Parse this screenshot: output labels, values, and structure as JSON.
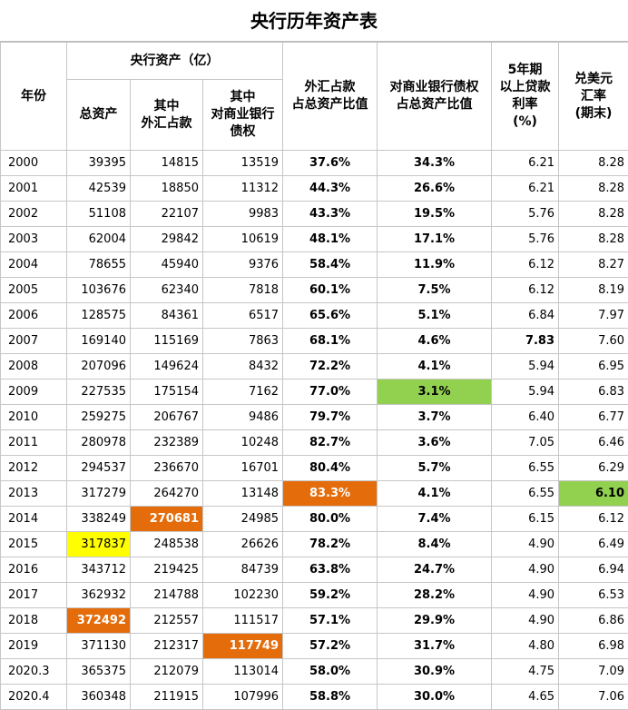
{
  "title": "央行历年资产表",
  "table": {
    "header_group": "央行资产（亿）",
    "headers": [
      "年份",
      "总资产",
      "其中\n外汇占款",
      "其中\n对商业银行\n债权",
      "外汇占款\n占总资产比值",
      "对商业银行债权\n占总资产比值",
      "5年期\n以上贷款\n利率\n(%)",
      "兑美元\n汇率\n(期末)"
    ],
    "rows": [
      [
        "2000",
        "39395",
        "14815",
        "13519",
        "37.6%",
        "34.3%",
        "6.21",
        "8.28"
      ],
      [
        "2001",
        "42539",
        "18850",
        "11312",
        "44.3%",
        "26.6%",
        "6.21",
        "8.28"
      ],
      [
        "2002",
        "51108",
        "22107",
        "9983",
        "43.3%",
        "19.5%",
        "5.76",
        "8.28"
      ],
      [
        "2003",
        "62004",
        "29842",
        "10619",
        "48.1%",
        "17.1%",
        "5.76",
        "8.28"
      ],
      [
        "2004",
        "78655",
        "45940",
        "9376",
        "58.4%",
        "11.9%",
        "6.12",
        "8.27"
      ],
      [
        "2005",
        "103676",
        "62340",
        "7818",
        "60.1%",
        "7.5%",
        "6.12",
        "8.19"
      ],
      [
        "2006",
        "128575",
        "84361",
        "6517",
        "65.6%",
        "5.1%",
        "6.84",
        "7.97"
      ],
      [
        "2007",
        "169140",
        "115169",
        "7863",
        "68.1%",
        "4.6%",
        "7.83",
        "7.60"
      ],
      [
        "2008",
        "207096",
        "149624",
        "8432",
        "72.2%",
        "4.1%",
        "5.94",
        "6.95"
      ],
      [
        "2009",
        "227535",
        "175154",
        "7162",
        "77.0%",
        "3.1%",
        "5.94",
        "6.83"
      ],
      [
        "2010",
        "259275",
        "206767",
        "9486",
        "79.7%",
        "3.7%",
        "6.40",
        "6.77"
      ],
      [
        "2011",
        "280978",
        "232389",
        "10248",
        "82.7%",
        "3.6%",
        "7.05",
        "6.46"
      ],
      [
        "2012",
        "294537",
        "236670",
        "16701",
        "80.4%",
        "5.7%",
        "6.55",
        "6.29"
      ],
      [
        "2013",
        "317279",
        "264270",
        "13148",
        "83.3%",
        "4.1%",
        "6.55",
        "6.10"
      ],
      [
        "2014",
        "338249",
        "270681",
        "24985",
        "80.0%",
        "7.4%",
        "6.15",
        "6.12"
      ],
      [
        "2015",
        "317837",
        "248538",
        "26626",
        "78.2%",
        "8.4%",
        "4.90",
        "6.49"
      ],
      [
        "2016",
        "343712",
        "219425",
        "84739",
        "63.8%",
        "24.7%",
        "4.90",
        "6.94"
      ],
      [
        "2017",
        "362932",
        "214788",
        "102230",
        "59.2%",
        "28.2%",
        "4.90",
        "6.53"
      ],
      [
        "2018",
        "372492",
        "212557",
        "111517",
        "57.1%",
        "29.9%",
        "4.90",
        "6.86"
      ],
      [
        "2019",
        "371130",
        "212317",
        "117749",
        "57.2%",
        "31.7%",
        "4.80",
        "6.98"
      ],
      [
        "2020.3",
        "365375",
        "212079",
        "113014",
        "58.0%",
        "30.9%",
        "4.75",
        "7.09"
      ],
      [
        "2020.4",
        "360348",
        "211915",
        "107996",
        "58.8%",
        "30.0%",
        "4.65",
        "7.06"
      ]
    ],
    "bold_columns": [
      4,
      5
    ],
    "highlights": [
      {
        "row": 7,
        "col": 6,
        "bold": true
      },
      {
        "row": 9,
        "col": 5,
        "fill": "#92d050",
        "bold": true
      },
      {
        "row": 13,
        "col": 4,
        "fill": "#e46c0a",
        "text_color": "#ffffff",
        "bold": true
      },
      {
        "row": 13,
        "col": 7,
        "fill": "#92d050",
        "bold": true
      },
      {
        "row": 14,
        "col": 2,
        "fill": "#e46c0a",
        "text_color": "#ffffff",
        "bold": true
      },
      {
        "row": 15,
        "col": 1,
        "fill": "#ffff00"
      },
      {
        "row": 18,
        "col": 1,
        "fill": "#e46c0a",
        "text_color": "#ffffff",
        "bold": true
      },
      {
        "row": 19,
        "col": 3,
        "fill": "#e46c0a",
        "text_color": "#ffffff",
        "bold": true
      }
    ]
  }
}
